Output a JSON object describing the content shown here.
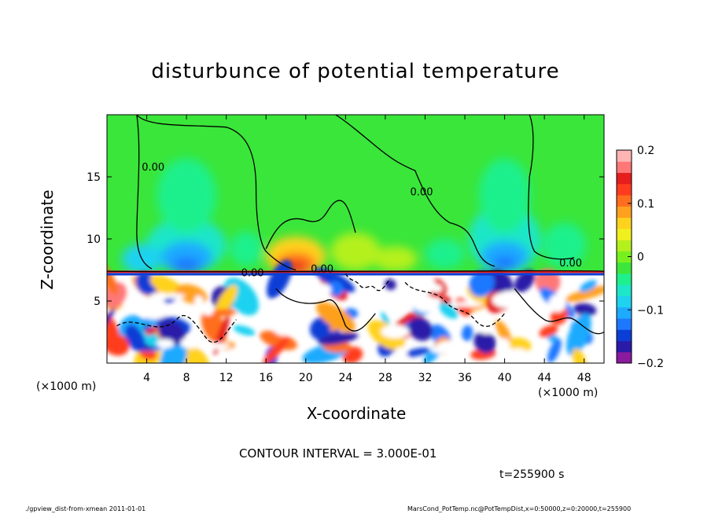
{
  "chart_data": {
    "type": "heatmap",
    "title": "disturbunce of potential temperature",
    "xlabel": "X-coordinate",
    "ylabel": "Z-coordinate",
    "x_unit_label": "(×1000 m)",
    "xlim": [
      0,
      50
    ],
    "ylim": [
      0,
      20
    ],
    "x_ticks": [
      4,
      8,
      12,
      16,
      20,
      24,
      28,
      32,
      36,
      40,
      44,
      48
    ],
    "y_ticks": [
      5,
      10,
      15
    ],
    "colorbar": {
      "range": [
        -0.2,
        0.2
      ],
      "ticks": [
        {
          "value": 0.2,
          "label": "0.2"
        },
        {
          "value": 0.1,
          "label": "0.1"
        },
        {
          "value": 0,
          "label": "0"
        },
        {
          "value": -0.1,
          "label": "−0.1"
        },
        {
          "value": -0.2,
          "label": "−0.2"
        }
      ],
      "colors": [
        "#8a1a9e",
        "#2b1aa8",
        "#0a3ed6",
        "#1e78ff",
        "#1eaaff",
        "#1ed2f0",
        "#1ee6c8",
        "#1ef08c",
        "#3ce63c",
        "#78f01e",
        "#b4f01e",
        "#f0f01e",
        "#ffd21e",
        "#ffa01e",
        "#ff6e1e",
        "#ff3c1e",
        "#e61e1e",
        "#ff7878",
        "#ffb4b4"
      ]
    },
    "contour_labels": [
      {
        "x": 3.5,
        "z": 15.5,
        "label": "0.00"
      },
      {
        "x": 30.5,
        "z": 13.5,
        "label": "0.00"
      },
      {
        "x": 13.5,
        "z": 7.0,
        "label": "0.00"
      },
      {
        "x": 20.5,
        "z": 7.3,
        "label": "0.00"
      },
      {
        "x": 45.5,
        "z": 7.8,
        "label": "0.00"
      }
    ],
    "contour_interval": "CONTOUR INTERVAL = 3.000E-01",
    "time_label": "t=255900 s"
  },
  "footer": {
    "left": "./gpview_dist-from-xmean  2011-01-01",
    "right": "MarsCond_PotTemp.nc@PotTempDist,x=0:50000,z=0:20000,t=255900"
  },
  "colors": {
    "background": "#3ae63a",
    "positive": "#ff3c1e",
    "negative": "#1e50ff"
  }
}
